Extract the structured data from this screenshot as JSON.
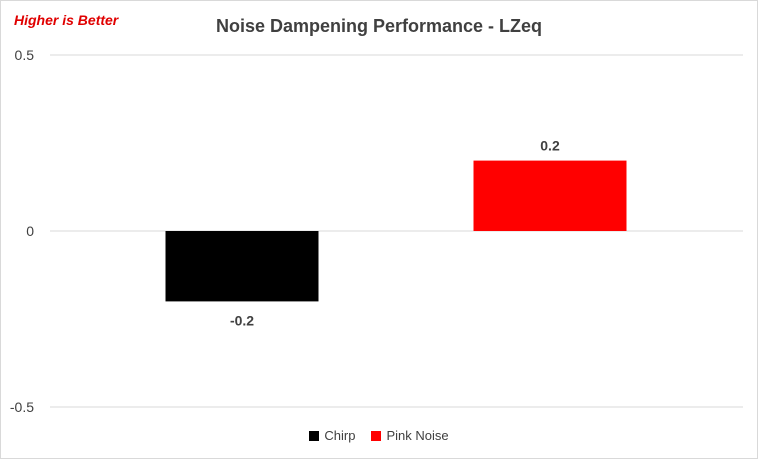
{
  "note": "Higher is Better",
  "colors": {
    "Chirp": "#000000",
    "Pink Noise": "#ff0000",
    "gridline": "#d9d9d9",
    "text": "#404040",
    "note": "#e00000"
  },
  "chart_data": {
    "type": "bar",
    "title": "Noise Dampening Performance - LZeq",
    "xlabel": "",
    "ylabel": "",
    "categories": [
      ""
    ],
    "series": [
      {
        "name": "Chirp",
        "values": [
          -0.2
        ],
        "label": "-0.2"
      },
      {
        "name": "Pink Noise",
        "values": [
          0.2
        ],
        "label": "0.2"
      }
    ],
    "ylim": [
      -0.5,
      0.5
    ],
    "yticks": [
      0.5,
      0,
      -0.5
    ],
    "ytick_labels": [
      "0.5",
      "0",
      "-0.5"
    ],
    "grid": true,
    "legend": "bottom"
  }
}
